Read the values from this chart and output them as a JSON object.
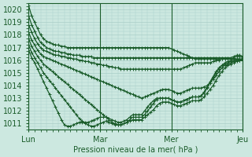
{
  "title": "",
  "xlabel": "Pression niveau de la mer( hPa )",
  "ylabel": "",
  "bg_color": "#cce8e0",
  "grid_color": "#aacfc8",
  "line_color": "#1a5c2a",
  "marker": "+",
  "markersize": 3,
  "linewidth": 0.9,
  "xlim": [
    0,
    72
  ],
  "ylim": [
    1010.5,
    1020.5
  ],
  "yticks": [
    1011,
    1012,
    1013,
    1014,
    1015,
    1016,
    1017,
    1018,
    1019,
    1020
  ],
  "xtick_positions": [
    0,
    24,
    48,
    72
  ],
  "xtick_labels": [
    "Lun",
    "Mar",
    "Mer",
    "Jeu"
  ],
  "vlines": [
    0,
    24,
    48,
    72
  ],
  "series": [
    [
      1020.3,
      1019.5,
      1019.0,
      1018.5,
      1018.0,
      1017.7,
      1017.5,
      1017.4,
      1017.3,
      1017.2,
      1017.2,
      1017.1,
      1017.1,
      1017.0,
      1017.0,
      1017.0,
      1017.0,
      1017.0,
      1017.0,
      1017.0,
      1017.0,
      1017.0,
      1017.0,
      1017.0,
      1017.0,
      1017.0,
      1017.0,
      1017.0,
      1017.0,
      1017.0,
      1017.0,
      1017.0,
      1017.0,
      1017.0,
      1017.0,
      1017.0,
      1017.0,
      1017.0,
      1017.0,
      1017.0,
      1017.0,
      1017.0,
      1017.0,
      1017.0,
      1017.0,
      1017.0,
      1017.0,
      1017.0,
      1016.9,
      1016.8,
      1016.7,
      1016.6,
      1016.5,
      1016.4,
      1016.3,
      1016.2,
      1016.1,
      1016.1,
      1016.1,
      1016.1,
      1016.1,
      1016.1,
      1016.1,
      1016.1,
      1016.1,
      1016.1,
      1016.1,
      1016.1,
      1016.1,
      1016.2,
      1016.3,
      1016.3,
      1016.2
    ],
    [
      1019.5,
      1018.8,
      1018.3,
      1017.8,
      1017.4,
      1017.2,
      1017.0,
      1016.9,
      1016.8,
      1016.7,
      1016.7,
      1016.6,
      1016.6,
      1016.5,
      1016.5,
      1016.4,
      1016.4,
      1016.4,
      1016.3,
      1016.3,
      1016.3,
      1016.3,
      1016.2,
      1016.2,
      1016.2,
      1016.2,
      1016.2,
      1016.2,
      1016.2,
      1016.2,
      1016.2,
      1016.2,
      1016.2,
      1016.2,
      1016.2,
      1016.2,
      1016.2,
      1016.2,
      1016.2,
      1016.2,
      1016.2,
      1016.2,
      1016.2,
      1016.2,
      1016.2,
      1016.2,
      1016.2,
      1016.2,
      1016.2,
      1016.2,
      1016.2,
      1016.2,
      1016.2,
      1016.2,
      1016.2,
      1016.2,
      1016.2,
      1016.2,
      1016.2,
      1016.2,
      1016.2,
      1016.2,
      1016.2,
      1016.2,
      1016.2,
      1016.2,
      1016.2,
      1016.2,
      1016.2,
      1016.3,
      1016.4,
      1016.4,
      1016.3
    ],
    [
      1018.8,
      1018.2,
      1017.7,
      1017.3,
      1017.0,
      1016.8,
      1016.7,
      1016.6,
      1016.5,
      1016.4,
      1016.4,
      1016.3,
      1016.3,
      1016.2,
      1016.2,
      1016.1,
      1016.1,
      1016.0,
      1016.0,
      1015.9,
      1015.9,
      1015.8,
      1015.8,
      1015.7,
      1015.7,
      1015.6,
      1015.6,
      1015.5,
      1015.5,
      1015.4,
      1015.4,
      1015.3,
      1015.3,
      1015.3,
      1015.3,
      1015.3,
      1015.3,
      1015.3,
      1015.3,
      1015.3,
      1015.3,
      1015.3,
      1015.3,
      1015.3,
      1015.3,
      1015.3,
      1015.3,
      1015.3,
      1015.3,
      1015.3,
      1015.3,
      1015.3,
      1015.4,
      1015.5,
      1015.6,
      1015.7,
      1015.8,
      1015.8,
      1015.8,
      1015.8,
      1015.8,
      1015.8,
      1015.9,
      1016.0,
      1016.0,
      1016.1,
      1016.1,
      1016.1,
      1016.1,
      1016.1,
      1016.1,
      1016.1,
      1016.1
    ],
    [
      1018.2,
      1017.6,
      1017.2,
      1016.8,
      1016.5,
      1016.3,
      1016.2,
      1016.1,
      1016.0,
      1015.9,
      1015.8,
      1015.7,
      1015.6,
      1015.5,
      1015.4,
      1015.3,
      1015.2,
      1015.1,
      1015.0,
      1014.9,
      1014.8,
      1014.7,
      1014.6,
      1014.5,
      1014.4,
      1014.3,
      1014.2,
      1014.1,
      1014.0,
      1013.9,
      1013.8,
      1013.7,
      1013.6,
      1013.5,
      1013.4,
      1013.3,
      1013.2,
      1013.1,
      1013.0,
      1013.1,
      1013.2,
      1013.3,
      1013.4,
      1013.5,
      1013.6,
      1013.7,
      1013.7,
      1013.7,
      1013.6,
      1013.5,
      1013.4,
      1013.4,
      1013.5,
      1013.6,
      1013.7,
      1013.8,
      1013.8,
      1013.8,
      1013.8,
      1013.9,
      1014.0,
      1014.2,
      1014.5,
      1014.8,
      1015.1,
      1015.4,
      1015.6,
      1015.7,
      1015.8,
      1015.9,
      1016.0,
      1016.0,
      1016.0
    ],
    [
      1017.7,
      1017.1,
      1016.7,
      1016.3,
      1016.0,
      1015.7,
      1015.5,
      1015.3,
      1015.1,
      1014.9,
      1014.7,
      1014.5,
      1014.3,
      1014.1,
      1013.9,
      1013.7,
      1013.5,
      1013.3,
      1013.1,
      1012.9,
      1012.7,
      1012.5,
      1012.3,
      1012.1,
      1011.9,
      1011.7,
      1011.5,
      1011.3,
      1011.1,
      1011.0,
      1010.9,
      1010.9,
      1011.0,
      1011.1,
      1011.2,
      1011.3,
      1011.3,
      1011.3,
      1011.3,
      1011.5,
      1011.7,
      1011.9,
      1012.1,
      1012.4,
      1012.6,
      1012.7,
      1012.7,
      1012.7,
      1012.6,
      1012.5,
      1012.4,
      1012.4,
      1012.5,
      1012.6,
      1012.7,
      1012.8,
      1012.8,
      1012.8,
      1012.9,
      1013.1,
      1013.4,
      1013.7,
      1014.0,
      1014.4,
      1014.8,
      1015.1,
      1015.4,
      1015.6,
      1015.7,
      1015.8,
      1015.9,
      1016.0,
      1016.0
    ],
    [
      1017.2,
      1016.6,
      1016.2,
      1015.8,
      1015.4,
      1015.0,
      1014.7,
      1014.4,
      1014.1,
      1013.8,
      1013.5,
      1013.2,
      1012.9,
      1012.6,
      1012.3,
      1012.0,
      1011.7,
      1011.4,
      1011.2,
      1011.0,
      1010.9,
      1010.8,
      1010.8,
      1010.9,
      1011.0,
      1011.1,
      1011.2,
      1011.1,
      1011.0,
      1010.9,
      1010.9,
      1010.9,
      1011.0,
      1011.1,
      1011.3,
      1011.5,
      1011.5,
      1011.5,
      1011.5,
      1011.7,
      1012.0,
      1012.3,
      1012.6,
      1012.9,
      1013.0,
      1013.0,
      1013.0,
      1013.0,
      1012.9,
      1012.8,
      1012.7,
      1012.7,
      1012.8,
      1012.9,
      1013.0,
      1013.1,
      1013.1,
      1013.1,
      1013.2,
      1013.4,
      1013.8,
      1014.2,
      1014.6,
      1015.0,
      1015.3,
      1015.6,
      1015.7,
      1015.8,
      1015.9,
      1016.0,
      1016.0,
      1016.0,
      1016.0
    ],
    [
      1016.8,
      1016.2,
      1015.8,
      1015.3,
      1014.8,
      1014.3,
      1013.8,
      1013.3,
      1012.8,
      1012.3,
      1011.8,
      1011.3,
      1010.9,
      1010.8,
      1010.8,
      1010.9,
      1011.0,
      1011.1,
      1011.1,
      1011.1,
      1011.1,
      1011.2,
      1011.3,
      1011.4,
      1011.5,
      1011.5,
      1011.5,
      1011.4,
      1011.3,
      1011.2,
      1011.1,
      1011.1,
      1011.2,
      1011.3,
      1011.5,
      1011.7,
      1011.7,
      1011.7,
      1011.7,
      1012.0,
      1012.3,
      1012.6,
      1012.8,
      1013.0,
      1013.0,
      1013.0,
      1013.0,
      1013.0,
      1012.9,
      1012.8,
      1012.7,
      1012.7,
      1012.8,
      1012.9,
      1013.0,
      1013.1,
      1013.1,
      1013.1,
      1013.2,
      1013.5,
      1013.9,
      1014.3,
      1014.7,
      1015.1,
      1015.4,
      1015.6,
      1015.8,
      1015.9,
      1016.0,
      1016.1,
      1016.1,
      1016.1,
      1016.0
    ]
  ]
}
